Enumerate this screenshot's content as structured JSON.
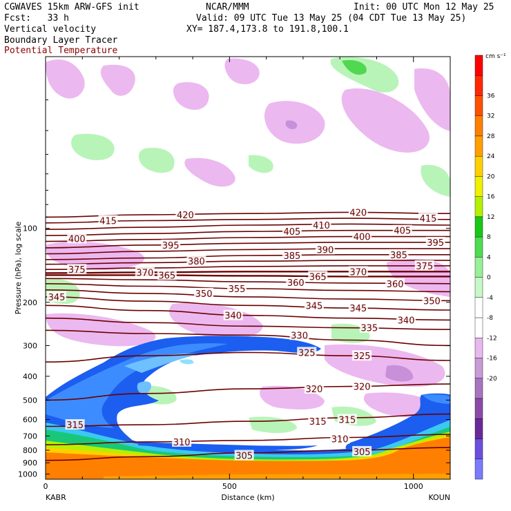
{
  "header": {
    "model_line": "CGWAVES 15km ARW-GFS init",
    "forecast_line": "Fcst:   33 h",
    "field_1": "Vertical velocity",
    "field_2": "Boundary Layer Tracer",
    "field_3": "Potential Temperature",
    "center": "NCAR/MMM",
    "init": "Init: 00 UTC Mon 12 May 25",
    "valid": "Valid: 09 UTC Tue 13 May 25 (04 CDT Tue 13 May 25)",
    "xy": "XY= 187.4,173.8 to 191.8,100.1"
  },
  "colors": {
    "theta": "#6b0000",
    "theta_label": "#6b0000",
    "colorbar": [
      "#7b7bff",
      "#6b50e0",
      "#6a2a9a",
      "#8c4aa8",
      "#a874c0",
      "#c89ad6",
      "#e8b8ee",
      "#ffffff",
      "#ffffff",
      "#c8f8c8",
      "#98f098",
      "#50dc50",
      "#18c818",
      "#b4f000",
      "#f0f000",
      "#ffd000",
      "#ffa000",
      "#ff8000",
      "#ff5000",
      "#ff2800",
      "#ff0000"
    ],
    "pos_shade": [
      "#b8f4b8",
      "#8ce88c",
      "#50d850"
    ],
    "neg_shade": [
      "#ecb8f0",
      "#c890d8",
      "#a070c0"
    ]
  },
  "chart_data": {
    "type": "cross-section",
    "title": "Vertical velocity / Boundary Layer Tracer / Potential Temperature",
    "xlabel": "Distance (km)",
    "ylabel": "Pressure (hPa), log scale",
    "x_ticks": [
      "0",
      "500",
      "1000"
    ],
    "x_range": [
      0,
      1100
    ],
    "y_ticks": [
      "100",
      "200",
      "300",
      "400",
      "500",
      "600",
      "700",
      "800",
      "900",
      "1000"
    ],
    "y_scale": "log",
    "y_range": [
      1050,
      20
    ],
    "x_endpoints": {
      "left": "KABR",
      "right": "KOUN"
    },
    "colorbar": {
      "units": "cm s⁻¹",
      "labels": [
        "36",
        "32",
        "28",
        "24",
        "20",
        "16",
        "12",
        "8",
        "4",
        "0",
        "-4",
        "-8",
        "-12",
        "-16",
        "-20"
      ]
    },
    "theta_contours": [
      {
        "value": 420,
        "p": [
          90,
          88,
          87,
          86,
          87
        ]
      },
      {
        "value": 415,
        "p": [
          95,
          93,
          92,
          91,
          92
        ]
      },
      {
        "value": 410,
        "p": [
          101,
          99,
          97,
          96,
          97
        ]
      },
      {
        "value": 405,
        "p": [
          107,
          105,
          103,
          102,
          102
        ]
      },
      {
        "value": 400,
        "p": [
          113,
          111,
          109,
          108,
          108
        ]
      },
      {
        "value": 395,
        "p": [
          120,
          117,
          115,
          114,
          114
        ]
      },
      {
        "value": 390,
        "p": [
          127,
          124,
          122,
          121,
          121
        ]
      },
      {
        "value": 385,
        "p": [
          134,
          132,
          129,
          128,
          128
        ]
      },
      {
        "value": 380,
        "p": [
          140,
          138,
          136,
          135,
          135
        ]
      },
      {
        "value": 375,
        "p": [
          147,
          145,
          143,
          142,
          142
        ]
      },
      {
        "value": 370,
        "p": [
          152,
          151,
          150,
          150,
          150
        ]
      },
      {
        "value": 365,
        "p": [
          155,
          155,
          156,
          157,
          157
        ]
      },
      {
        "value": 360,
        "p": [
          160,
          162,
          165,
          167,
          168
        ]
      },
      {
        "value": 355,
        "p": [
          168,
          172,
          176,
          179,
          181
        ]
      },
      {
        "value": 350,
        "p": [
          178,
          184,
          190,
          194,
          197
        ]
      },
      {
        "value": 345,
        "p": [
          190,
          198,
          206,
          211,
          215
        ]
      },
      {
        "value": 340,
        "p": [
          206,
          216,
          226,
          232,
          236
        ]
      },
      {
        "value": 335,
        "p": [
          232,
          242,
          250,
          254,
          258
        ]
      },
      {
        "value": 330,
        "p": [
          260,
          268,
          272,
          285,
          300
        ]
      },
      {
        "value": 325,
        "p": [
          350,
          330,
          320,
          330,
          345
        ]
      },
      {
        "value": 320,
        "p": [
          500,
          470,
          450,
          440,
          430
        ]
      },
      {
        "value": 315,
        "p": [
          640,
          630,
          610,
          590,
          570
        ]
      },
      {
        "value": 310,
        "p": [
          760,
          740,
          730,
          710,
          690
        ]
      },
      {
        "value": 305,
        "p": [
          880,
          850,
          820,
          800,
          780
        ]
      }
    ],
    "theta_labels": [
      {
        "text": "415",
        "x": 170,
        "p": 93
      },
      {
        "text": "420",
        "x": 380,
        "p": 88
      },
      {
        "text": "420",
        "x": 850,
        "p": 86
      },
      {
        "text": "415",
        "x": 1040,
        "p": 91
      },
      {
        "text": "410",
        "x": 750,
        "p": 97
      },
      {
        "text": "405",
        "x": 670,
        "p": 103
      },
      {
        "text": "405",
        "x": 970,
        "p": 102
      },
      {
        "text": "400",
        "x": 85,
        "p": 110
      },
      {
        "text": "400",
        "x": 860,
        "p": 108
      },
      {
        "text": "395",
        "x": 340,
        "p": 117
      },
      {
        "text": "395",
        "x": 1060,
        "p": 114
      },
      {
        "text": "390",
        "x": 760,
        "p": 122
      },
      {
        "text": "385",
        "x": 670,
        "p": 129
      },
      {
        "text": "385",
        "x": 960,
        "p": 128
      },
      {
        "text": "380",
        "x": 410,
        "p": 136
      },
      {
        "text": "375",
        "x": 85,
        "p": 147
      },
      {
        "text": "375",
        "x": 1030,
        "p": 142
      },
      {
        "text": "370",
        "x": 270,
        "p": 151
      },
      {
        "text": "370",
        "x": 850,
        "p": 150
      },
      {
        "text": "365",
        "x": 740,
        "p": 157
      },
      {
        "text": "365",
        "x": 330,
        "p": 155
      },
      {
        "text": "360",
        "x": 680,
        "p": 166
      },
      {
        "text": "360",
        "x": 950,
        "p": 168
      },
      {
        "text": "355",
        "x": 520,
        "p": 176
      },
      {
        "text": "350",
        "x": 430,
        "p": 184
      },
      {
        "text": "350",
        "x": 1050,
        "p": 197
      },
      {
        "text": "345",
        "x": 30,
        "p": 190
      },
      {
        "text": "345",
        "x": 730,
        "p": 206
      },
      {
        "text": "345",
        "x": 850,
        "p": 211
      },
      {
        "text": "340",
        "x": 510,
        "p": 226
      },
      {
        "text": "340",
        "x": 980,
        "p": 236
      },
      {
        "text": "335",
        "x": 880,
        "p": 254
      },
      {
        "text": "330",
        "x": 690,
        "p": 272
      },
      {
        "text": "325",
        "x": 710,
        "p": 320
      },
      {
        "text": "325",
        "x": 860,
        "p": 330
      },
      {
        "text": "320",
        "x": 730,
        "p": 450
      },
      {
        "text": "320",
        "x": 860,
        "p": 440
      },
      {
        "text": "315",
        "x": 80,
        "p": 630
      },
      {
        "text": "315",
        "x": 740,
        "p": 610
      },
      {
        "text": "315",
        "x": 820,
        "p": 600
      },
      {
        "text": "310",
        "x": 370,
        "p": 740
      },
      {
        "text": "310",
        "x": 800,
        "p": 720
      },
      {
        "text": "305",
        "x": 540,
        "p": 840
      },
      {
        "text": "305",
        "x": 860,
        "p": 810
      }
    ]
  }
}
